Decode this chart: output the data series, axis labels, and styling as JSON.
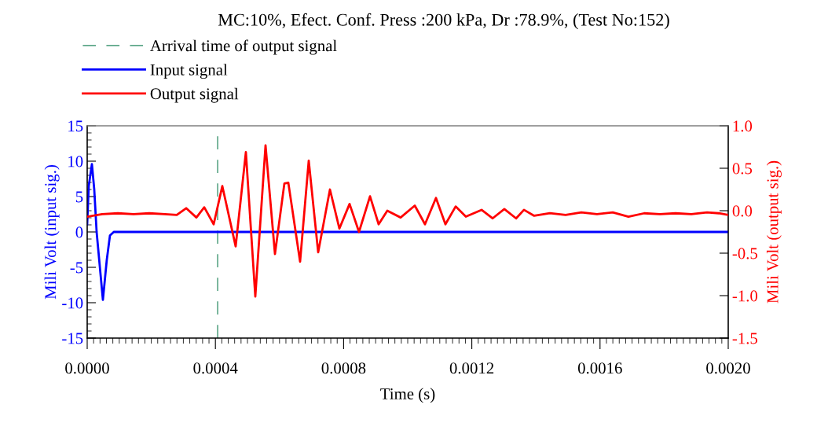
{
  "chart_data": {
    "type": "line",
    "title": "MC:10%, Efect. Conf. Press :200 kPa, Dr :78.9%, (Test No:152)",
    "xlabel": "Time (s)",
    "ylabel": "Mili Volt (input sig.)",
    "y2label": "Mili Volt (output sig.)",
    "legend": "top left",
    "grid": false,
    "line_style": "solid",
    "marker": "none",
    "xlim": [
      0,
      0.002
    ],
    "xticks": [
      {
        "value": 0,
        "label": "0.0000"
      },
      {
        "value": 0.0004,
        "label": "0.0004"
      },
      {
        "value": 0.0008,
        "label": "0.0008"
      },
      {
        "value": 0.0012,
        "label": "0.0012"
      },
      {
        "value": 0.0016,
        "label": "0.0016"
      },
      {
        "value": 0.002,
        "label": "0.0020"
      }
    ],
    "ylim": [
      -15,
      15
    ],
    "yticks": [
      -15,
      -10,
      -5,
      0,
      5,
      10,
      15
    ],
    "y2lim": [
      -1.5,
      1.0
    ],
    "y2ticks": [
      {
        "value": -1.5,
        "label": "-1.5"
      },
      {
        "value": -1.0,
        "label": "-1.0"
      },
      {
        "value": -0.5,
        "label": "-0.5"
      },
      {
        "value": 0,
        "label": "0.0"
      },
      {
        "value": 0.5,
        "label": "0.5"
      },
      {
        "value": 1.0,
        "label": "1.0"
      }
    ],
    "ref_lines": [
      {
        "axis": "x",
        "value": 0.000407,
        "label": "Arrival time of output signal",
        "color": "#5fa88a",
        "line_style": "dashed"
      }
    ],
    "series": [
      {
        "name": "Input signal",
        "color": "#0000ff",
        "x": [
          0,
          4.9e-06,
          1.47e-05,
          2.2e-05,
          2.94e-05,
          4.9e-05,
          6.1e-05,
          7.1e-05,
          8.3e-05,
          9.6e-05,
          0.002
        ],
        "values": [
          1.1,
          6.5,
          9.6,
          6,
          0,
          -9.6,
          -4,
          -0.5,
          0,
          0,
          0
        ]
      },
      {
        "name": "Output signal",
        "color": "#ff0000",
        "axis": "y2",
        "x": [
          0,
          4.66e-05,
          9.56e-05,
          0.0001446,
          0.0001936,
          0.0002426,
          0.0002794,
          0.0003088,
          0.0003407,
          0.0003652,
          0.0003946,
          0.0004216,
          0.0004632,
          0.0004951,
          0.0005245,
          0.0005564,
          0.0005858,
          0.0006152,
          0.0006275,
          0.0006642,
          0.0006912,
          0.0007206,
          0.0007574,
          0.0007868,
          0.0008186,
          0.000848,
          0.0008824,
          0.0009093,
          0.0009363,
          0.0009779,
          0.0010221,
          0.0010539,
          0.0010882,
          0.0011177,
          0.0011495,
          0.0011814,
          0.0012304,
          0.0012647,
          0.0013015,
          0.0013382,
          0.0013627,
          0.0013946,
          0.0014436,
          0.0014926,
          0.0015417,
          0.0015907,
          0.0016397,
          0.0016887,
          0.0017378,
          0.0017868,
          0.0018358,
          0.0018848,
          0.0019339,
          0.0019706,
          0.002
        ],
        "values": [
          -0.07,
          -0.04,
          -0.03,
          -0.04,
          -0.03,
          -0.04,
          -0.05,
          0.03,
          -0.08,
          0.04,
          -0.16,
          0.29,
          -0.42,
          0.69,
          -1.01,
          0.77,
          -0.51,
          0.32,
          0.33,
          -0.6,
          0.59,
          -0.49,
          0.25,
          -0.21,
          0.08,
          -0.25,
          0.17,
          -0.16,
          0.0,
          -0.08,
          0.06,
          -0.16,
          0.15,
          -0.16,
          0.05,
          -0.07,
          0.01,
          -0.09,
          0.02,
          -0.09,
          0.01,
          -0.06,
          -0.03,
          -0.05,
          -0.02,
          -0.04,
          -0.02,
          -0.07,
          -0.03,
          -0.04,
          -0.03,
          -0.04,
          -0.02,
          -0.03,
          -0.05
        ]
      }
    ]
  }
}
